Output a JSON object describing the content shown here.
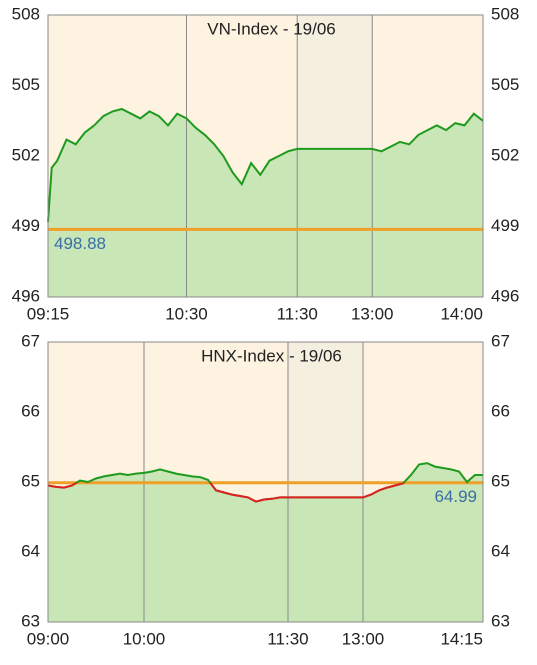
{
  "chart_data": [
    {
      "type": "line",
      "title": "VN-Index - 19/06",
      "x": [
        555,
        557,
        560,
        565,
        570,
        575,
        580,
        585,
        590,
        595,
        600,
        605,
        610,
        615,
        620,
        625,
        630,
        635,
        640,
        645,
        650,
        655,
        660,
        665,
        670,
        675,
        680,
        685,
        690,
        780,
        785,
        790,
        795,
        800,
        805,
        810,
        815,
        820,
        825,
        830,
        835,
        840
      ],
      "values": [
        499.2,
        501.5,
        501.8,
        502.7,
        502.5,
        503,
        503.3,
        503.7,
        503.9,
        504,
        503.8,
        503.6,
        503.9,
        503.7,
        503.3,
        503.8,
        503.6,
        503.2,
        502.9,
        502.5,
        502,
        501.3,
        500.8,
        501.7,
        501.2,
        501.8,
        502,
        502.2,
        502.3,
        502.3,
        502.2,
        502.4,
        502.6,
        502.5,
        502.9,
        503.1,
        503.3,
        503.1,
        503.4,
        503.3,
        503.8,
        503.5
      ],
      "color": "#1e9a1e",
      "below_color": "#e02020",
      "fill": "#c9e6b7",
      "reference": 498.88,
      "reference_color": "#f0a028",
      "break": [
        690,
        780
      ],
      "xlim": [
        555,
        840
      ],
      "xticks": [
        {
          "value": 555,
          "label": "09:15"
        },
        {
          "value": 630,
          "label": "10:30"
        },
        {
          "value": 690,
          "label": "11:30"
        },
        {
          "value": 780,
          "label": "13:00"
        },
        {
          "value": 840,
          "label": "14:00"
        }
      ],
      "ylim": [
        496,
        508
      ],
      "yticks": [
        496,
        499,
        502,
        505,
        508
      ]
    },
    {
      "type": "line",
      "title": "HNX-Index - 19/06",
      "x": [
        540,
        545,
        550,
        555,
        560,
        565,
        570,
        575,
        580,
        585,
        590,
        595,
        600,
        605,
        610,
        615,
        620,
        625,
        630,
        635,
        640,
        645,
        650,
        655,
        660,
        665,
        670,
        675,
        680,
        685,
        690,
        780,
        785,
        790,
        795,
        800,
        805,
        810,
        815,
        820,
        825,
        830,
        835,
        840,
        845,
        850,
        855
      ],
      "values": [
        64.95,
        64.93,
        64.92,
        64.95,
        65.02,
        65.0,
        65.05,
        65.08,
        65.1,
        65.12,
        65.1,
        65.12,
        65.13,
        65.15,
        65.18,
        65.15,
        65.12,
        65.1,
        65.08,
        65.07,
        65.03,
        64.88,
        64.85,
        64.82,
        64.8,
        64.78,
        64.72,
        64.75,
        64.76,
        64.78,
        64.78,
        64.78,
        64.82,
        64.88,
        64.92,
        64.95,
        64.98,
        65.1,
        65.25,
        65.27,
        65.22,
        65.2,
        65.18,
        65.15,
        65.0,
        65.1,
        65.1
      ],
      "color": "#1e9a1e",
      "below_color": "#e02020",
      "fill": "#c9e6b7",
      "reference": 64.99,
      "reference_color": "#f0a028",
      "break": [
        690,
        780
      ],
      "xlim": [
        540,
        855
      ],
      "xticks": [
        {
          "value": 540,
          "label": "09:00"
        },
        {
          "value": 600,
          "label": "10:00"
        },
        {
          "value": 690,
          "label": "11:30"
        },
        {
          "value": 780,
          "label": "13:00"
        },
        {
          "value": 855,
          "label": "14:15"
        }
      ],
      "ylim": [
        63,
        67
      ],
      "yticks": [
        63,
        64,
        65,
        66,
        67
      ]
    }
  ]
}
